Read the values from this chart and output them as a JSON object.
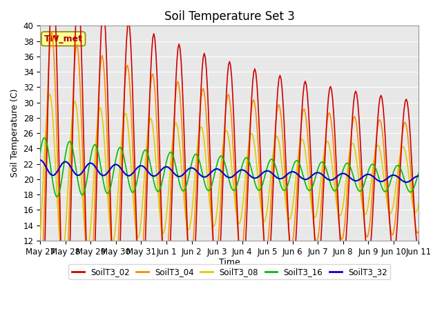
{
  "title": "Soil Temperature Set 3",
  "xlabel": "Time",
  "ylabel": "Soil Temperature (C)",
  "ylim": [
    12,
    40
  ],
  "annotation": "TW_met",
  "fig_bg": "#ffffff",
  "plot_bg": "#e8e8e8",
  "grid_color": "#ffffff",
  "series": {
    "SoilT3_02": {
      "color": "#cc0000",
      "lw": 1.2
    },
    "SoilT3_04": {
      "color": "#ff8800",
      "lw": 1.2
    },
    "SoilT3_08": {
      "color": "#ddcc00",
      "lw": 1.2
    },
    "SoilT3_16": {
      "color": "#00bb00",
      "lw": 1.2
    },
    "SoilT3_32": {
      "color": "#0000cc",
      "lw": 1.5
    }
  },
  "xtick_labels": [
    "May 27",
    "May 28",
    "May 29",
    "May 30",
    "May 31",
    "Jun 1",
    "Jun 2",
    "Jun 3",
    "Jun 4",
    "Jun 5",
    "Jun 6",
    "Jun 7",
    "Jun 8",
    "Jun 9",
    "Jun 10",
    "Jun 11"
  ],
  "title_fontsize": 12,
  "axis_label_fontsize": 9,
  "tick_fontsize": 8.5
}
